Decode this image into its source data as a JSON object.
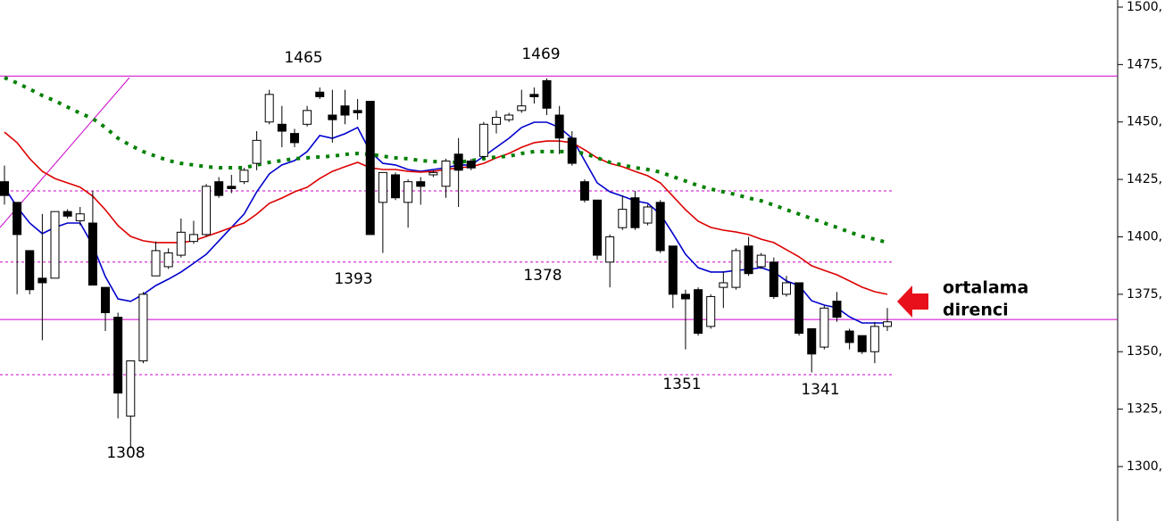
{
  "chart_data": {
    "type": "candlestick",
    "open": [
      1424,
      1415,
      1394,
      1382,
      1382,
      1411,
      1407,
      1406,
      1378,
      1365,
      1322,
      1346,
      1383,
      1387,
      1392,
      1398,
      1401,
      1424,
      1422,
      1424,
      1432,
      1450,
      1449,
      1445,
      1449,
      1463,
      1453,
      1457,
      1455,
      1459,
      1415,
      1427,
      1415,
      1424,
      1427,
      1422,
      1436,
      1433,
      1435,
      1449,
      1451,
      1455,
      1462,
      1468,
      1453,
      1443,
      1424,
      1416,
      1389,
      1404,
      1417,
      1406,
      1415,
      1396,
      1375,
      1377,
      1361,
      1378,
      1378,
      1396,
      1387,
      1389,
      1375,
      1380,
      1360,
      1352,
      1372,
      1359,
      1357,
      1350,
      1361
    ],
    "high": [
      1431,
      1415,
      1394,
      1410,
      1411,
      1412,
      1413,
      1420,
      1378,
      1367,
      1346,
      1376,
      1398,
      1395,
      1408,
      1407,
      1423,
      1426,
      1427,
      1430,
      1446,
      1464,
      1457,
      1447,
      1457,
      1465,
      1464,
      1464,
      1460,
      1459,
      1428,
      1428,
      1425,
      1426,
      1429,
      1434,
      1443,
      1434,
      1450,
      1455,
      1454,
      1464,
      1465,
      1469,
      1457,
      1446,
      1425,
      1416,
      1401,
      1418,
      1420,
      1414,
      1416,
      1396,
      1377,
      1378,
      1375,
      1385,
      1395,
      1400,
      1393,
      1391,
      1383,
      1380,
      1360,
      1370,
      1376,
      1360,
      1357,
      1363,
      1369
    ],
    "low": [
      1414,
      1375,
      1375,
      1355,
      1382,
      1408,
      1405,
      1379,
      1359,
      1321,
      1308,
      1345,
      1383,
      1386,
      1391,
      1397,
      1400,
      1417,
      1419,
      1423,
      1429,
      1449,
      1439,
      1439,
      1448,
      1460,
      1441,
      1449,
      1451,
      1401,
      1393,
      1416,
      1404,
      1414,
      1426,
      1417,
      1413,
      1429,
      1434,
      1445,
      1450,
      1454,
      1458,
      1453,
      1436,
      1431,
      1415,
      1390,
      1378,
      1403,
      1403,
      1405,
      1393,
      1369,
      1351,
      1357,
      1360,
      1369,
      1377,
      1383,
      1386,
      1373,
      1374,
      1357,
      1341,
      1351,
      1363,
      1351,
      1349,
      1345,
      1359
    ],
    "close": [
      1418,
      1401,
      1377,
      1380,
      1411,
      1409,
      1410,
      1379,
      1367,
      1332,
      1346,
      1375,
      1394,
      1393,
      1402,
      1401,
      1422,
      1418,
      1421,
      1429,
      1442,
      1462,
      1446,
      1441,
      1455,
      1461,
      1451,
      1453,
      1454,
      1401,
      1428,
      1417,
      1424,
      1422,
      1428,
      1433,
      1429,
      1430,
      1449,
      1452,
      1453,
      1457,
      1461,
      1456,
      1443,
      1432,
      1416,
      1392,
      1400,
      1412,
      1404,
      1413,
      1394,
      1375,
      1373,
      1358,
      1374,
      1380,
      1394,
      1384,
      1392,
      1374,
      1380,
      1358,
      1349,
      1369,
      1365,
      1354,
      1350,
      1361,
      1363
    ],
    "up_color": "#ffffff",
    "down_color": "#000000",
    "lines": [
      {
        "color": "#0000cc",
        "style": "solid",
        "values": [
          1421.6,
          1413.0,
          1406.0,
          1401.4,
          1404.1,
          1406.0,
          1406.0,
          1396.3,
          1382.7,
          1373.0,
          1371.9,
          1375.0,
          1378.8,
          1381.6,
          1384.7,
          1388.5,
          1392.4,
          1398.3,
          1404.1,
          1409.9,
          1419.6,
          1427.4,
          1431.3,
          1433.2,
          1437.1,
          1444.1,
          1442.9,
          1444.9,
          1447.6,
          1437.1,
          1432.0,
          1431.3,
          1429.3,
          1428.5,
          1429.3,
          1430.1,
          1431.3,
          1431.3,
          1435.1,
          1439.0,
          1442.9,
          1447.6,
          1449.9,
          1449.9,
          1447.6,
          1442.9,
          1433.2,
          1423.5,
          1419.6,
          1417.7,
          1415.7,
          1414.6,
          1409.9,
          1401.4,
          1392.4,
          1386.6,
          1384.7,
          1384.7,
          1385.4,
          1385.8,
          1386.6,
          1384.7,
          1380.8,
          1378.8,
          1372.2,
          1370.3,
          1369.1,
          1365.2,
          1362.5,
          1362.5,
          1362.5
        ]
      },
      {
        "color": "#dd0000",
        "style": "solid",
        "values": [
          1445.6,
          1441.0,
          1434.0,
          1428.5,
          1425.4,
          1423.5,
          1421.6,
          1417.7,
          1411.8,
          1404.9,
          1400.2,
          1398.3,
          1397.5,
          1397.5,
          1397.5,
          1398.3,
          1400.2,
          1402.1,
          1404.1,
          1406.0,
          1409.9,
          1414.6,
          1416.9,
          1419.6,
          1421.6,
          1425.4,
          1428.5,
          1430.5,
          1432.4,
          1430.1,
          1429.3,
          1429.3,
          1428.5,
          1428.2,
          1428.5,
          1429.3,
          1430.1,
          1430.5,
          1432.0,
          1434.4,
          1436.3,
          1439.0,
          1441.0,
          1441.7,
          1441.7,
          1441.0,
          1437.9,
          1434.4,
          1432.0,
          1430.5,
          1428.5,
          1426.6,
          1423.5,
          1417.7,
          1411.8,
          1406.8,
          1404.1,
          1402.9,
          1402.1,
          1401.0,
          1399.0,
          1397.5,
          1394.4,
          1391.3,
          1387.4,
          1385.4,
          1383.5,
          1380.8,
          1378.1,
          1376.1,
          1375.0
        ]
      },
      {
        "color": "#008000",
        "style": "dotted",
        "values": [
          1469.3,
          1467.0,
          1464.3,
          1461.5,
          1459.2,
          1456.5,
          1453.8,
          1451.5,
          1447.6,
          1442.9,
          1439.8,
          1437.1,
          1435.1,
          1433.2,
          1432.0,
          1431.3,
          1430.5,
          1430.1,
          1430.1,
          1430.1,
          1431.3,
          1432.4,
          1433.2,
          1434.0,
          1434.4,
          1434.8,
          1435.1,
          1435.9,
          1436.3,
          1435.9,
          1435.1,
          1434.4,
          1434.0,
          1433.2,
          1432.8,
          1432.4,
          1432.4,
          1433.2,
          1434.0,
          1434.8,
          1435.1,
          1436.3,
          1437.1,
          1437.1,
          1437.1,
          1437.1,
          1436.3,
          1434.4,
          1432.4,
          1431.3,
          1430.1,
          1429.3,
          1428.2,
          1426.2,
          1424.3,
          1422.3,
          1420.8,
          1419.6,
          1418.4,
          1416.9,
          1415.7,
          1413.8,
          1411.8,
          1409.9,
          1408.0,
          1406.0,
          1404.1,
          1402.1,
          1400.2,
          1399.0,
          1397.5
        ]
      }
    ],
    "levels": [
      {
        "value": 1470,
        "style": "solid"
      },
      {
        "value": 1364,
        "style": "solid"
      },
      {
        "value": 1420,
        "style": "dashed"
      },
      {
        "value": 1389,
        "style": "dashed"
      },
      {
        "value": 1340,
        "style": "dashed"
      }
    ],
    "level_color": "#cc00cc",
    "annotations": [
      "1465",
      "1469",
      "1393",
      "1378",
      "1351",
      "1341",
      "1308"
    ],
    "callout": [
      "ortalama",
      "direnci"
    ],
    "ylim": [
      1276.3,
      1503.1
    ],
    "yticks": [
      {
        "value": 1500,
        "label": "1500,"
      },
      {
        "value": 1475,
        "label": "1475,"
      },
      {
        "value": 1450,
        "label": "1450,"
      },
      {
        "value": 1425,
        "label": "1425,"
      },
      {
        "value": 1400,
        "label": "1400,"
      },
      {
        "value": 1375,
        "label": "1375,"
      },
      {
        "value": 1350,
        "label": "1350,"
      },
      {
        "value": 1325,
        "label": "1325,"
      },
      {
        "value": 1300,
        "label": "1300,"
      }
    ]
  }
}
